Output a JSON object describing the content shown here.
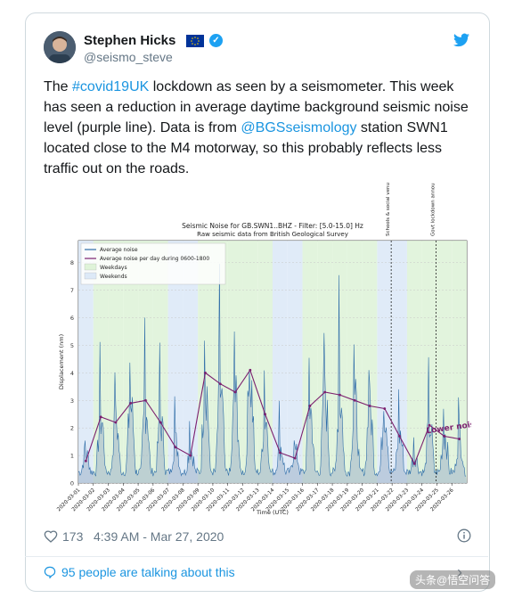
{
  "user": {
    "display_name": "Stephen Hicks",
    "handle": "@seismo_steve"
  },
  "tweet": {
    "segments": [
      {
        "text": "The ",
        "link": false
      },
      {
        "text": "#covid19UK",
        "link": true
      },
      {
        "text": " lockdown as seen by a seismometer. This week has seen a reduction in average daytime background seismic noise level (purple line). Data is from ",
        "link": false
      },
      {
        "text": "@BGSseismology",
        "link": true
      },
      {
        "text": " station SWN1 located close to the M4 motorway, so this probably reflects less traffic out on the roads.",
        "link": false
      }
    ]
  },
  "chart_data": {
    "type": "line",
    "title": "Seismic Noise for GB.SWN1..BHZ - Filter: [5.0-15.0] Hz",
    "subtitle": "Raw seismic data from British Geological Survey",
    "xlabel": "Time (UTC)",
    "ylabel": "Displacement (nm)",
    "ylim": [
      0,
      8.8
    ],
    "yticks": [
      0,
      1,
      2,
      3,
      4,
      5,
      6,
      7,
      8
    ],
    "categories": [
      "2020-03-01",
      "2020-03-02",
      "2020-03-03",
      "2020-03-04",
      "2020-03-05",
      "2020-03-06",
      "2020-03-07",
      "2020-03-08",
      "2020-03-09",
      "2020-03-10",
      "2020-03-11",
      "2020-03-12",
      "2020-03-13",
      "2020-03-14",
      "2020-03-15",
      "2020-03-16",
      "2020-03-17",
      "2020-03-18",
      "2020-03-19",
      "2020-03-20",
      "2020-03-21",
      "2020-03-22",
      "2020-03-23",
      "2020-03-24",
      "2020-03-25",
      "2020-03-26"
    ],
    "weekend_days": [
      "2020-03-01",
      "2020-03-07",
      "2020-03-08",
      "2020-03-14",
      "2020-03-15",
      "2020-03-21",
      "2020-03-22"
    ],
    "legend": [
      "Average noise",
      "Average noise per day during 0600-1800",
      "Weekdays",
      "Weekends"
    ],
    "legend_position": "top-left",
    "grid": true,
    "series": [
      {
        "name": "Average noise per day during 0600-1800",
        "color": "#7b1f6e",
        "values": [
          0.8,
          2.4,
          2.2,
          2.9,
          3.0,
          2.2,
          1.3,
          1.0,
          4.0,
          3.6,
          3.3,
          4.1,
          2.5,
          1.1,
          0.9,
          2.8,
          3.3,
          3.2,
          3.0,
          2.8,
          2.7,
          1.7,
          0.7,
          2.1,
          1.7,
          1.6
        ]
      },
      {
        "name": "Average noise",
        "color": "#2e6da8",
        "daily_peaks": [
          1.6,
          4.2,
          5.6,
          5.1,
          6.4,
          5.3,
          3.4,
          2.7,
          7.6,
          6.8,
          6.1,
          7.1,
          4.6,
          2.6,
          2.4,
          5.8,
          6.3,
          8.5,
          5.9,
          5.4,
          4.3,
          3.1,
          2.0,
          3.8,
          3.3,
          2.9
        ]
      }
    ],
    "annotations": [
      {
        "text": "Schools & social venues closed",
        "date": "2020-03-21"
      },
      {
        "text": "Govt lockdown announced",
        "date": "2020-03-24"
      },
      {
        "text": "Lower noise level",
        "color": "#7b1f6e"
      }
    ]
  },
  "footer": {
    "likes": "173",
    "timestamp": "4:39 AM - Mar 27, 2020",
    "talking": "95 people are talking about this"
  },
  "watermark": "头条@悟空问答",
  "colors": {
    "link": "#1b95e0",
    "twitter_blue": "#1da1f2",
    "weekday_fill": "#dff3d9",
    "weekend_fill": "#dde9f7",
    "trace": "#2e6da8",
    "purple": "#7b1f6e"
  }
}
